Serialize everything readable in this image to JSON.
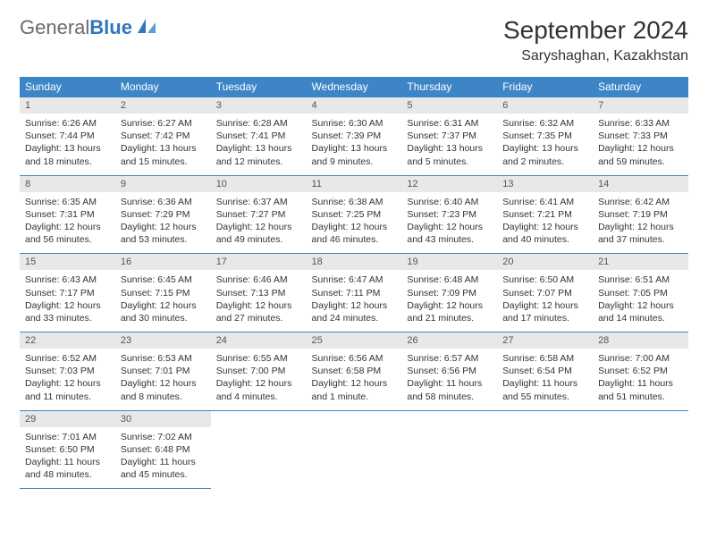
{
  "logo": {
    "part1": "General",
    "part2": "Blue"
  },
  "title": "September 2024",
  "location": "Saryshaghan, Kazakhstan",
  "colors": {
    "header_bg": "#3d85c6",
    "header_text": "#ffffff",
    "daynum_bg": "#e8e8e8",
    "border": "#3d85c6",
    "text": "#333333",
    "logo_gray": "#6a6a6a",
    "logo_blue": "#2f77bb"
  },
  "days_of_week": [
    "Sunday",
    "Monday",
    "Tuesday",
    "Wednesday",
    "Thursday",
    "Friday",
    "Saturday"
  ],
  "weeks": [
    [
      {
        "n": "1",
        "sr": "6:26 AM",
        "ss": "7:44 PM",
        "dl": "13 hours and 18 minutes."
      },
      {
        "n": "2",
        "sr": "6:27 AM",
        "ss": "7:42 PM",
        "dl": "13 hours and 15 minutes."
      },
      {
        "n": "3",
        "sr": "6:28 AM",
        "ss": "7:41 PM",
        "dl": "13 hours and 12 minutes."
      },
      {
        "n": "4",
        "sr": "6:30 AM",
        "ss": "7:39 PM",
        "dl": "13 hours and 9 minutes."
      },
      {
        "n": "5",
        "sr": "6:31 AM",
        "ss": "7:37 PM",
        "dl": "13 hours and 5 minutes."
      },
      {
        "n": "6",
        "sr": "6:32 AM",
        "ss": "7:35 PM",
        "dl": "13 hours and 2 minutes."
      },
      {
        "n": "7",
        "sr": "6:33 AM",
        "ss": "7:33 PM",
        "dl": "12 hours and 59 minutes."
      }
    ],
    [
      {
        "n": "8",
        "sr": "6:35 AM",
        "ss": "7:31 PM",
        "dl": "12 hours and 56 minutes."
      },
      {
        "n": "9",
        "sr": "6:36 AM",
        "ss": "7:29 PM",
        "dl": "12 hours and 53 minutes."
      },
      {
        "n": "10",
        "sr": "6:37 AM",
        "ss": "7:27 PM",
        "dl": "12 hours and 49 minutes."
      },
      {
        "n": "11",
        "sr": "6:38 AM",
        "ss": "7:25 PM",
        "dl": "12 hours and 46 minutes."
      },
      {
        "n": "12",
        "sr": "6:40 AM",
        "ss": "7:23 PM",
        "dl": "12 hours and 43 minutes."
      },
      {
        "n": "13",
        "sr": "6:41 AM",
        "ss": "7:21 PM",
        "dl": "12 hours and 40 minutes."
      },
      {
        "n": "14",
        "sr": "6:42 AM",
        "ss": "7:19 PM",
        "dl": "12 hours and 37 minutes."
      }
    ],
    [
      {
        "n": "15",
        "sr": "6:43 AM",
        "ss": "7:17 PM",
        "dl": "12 hours and 33 minutes."
      },
      {
        "n": "16",
        "sr": "6:45 AM",
        "ss": "7:15 PM",
        "dl": "12 hours and 30 minutes."
      },
      {
        "n": "17",
        "sr": "6:46 AM",
        "ss": "7:13 PM",
        "dl": "12 hours and 27 minutes."
      },
      {
        "n": "18",
        "sr": "6:47 AM",
        "ss": "7:11 PM",
        "dl": "12 hours and 24 minutes."
      },
      {
        "n": "19",
        "sr": "6:48 AM",
        "ss": "7:09 PM",
        "dl": "12 hours and 21 minutes."
      },
      {
        "n": "20",
        "sr": "6:50 AM",
        "ss": "7:07 PM",
        "dl": "12 hours and 17 minutes."
      },
      {
        "n": "21",
        "sr": "6:51 AM",
        "ss": "7:05 PM",
        "dl": "12 hours and 14 minutes."
      }
    ],
    [
      {
        "n": "22",
        "sr": "6:52 AM",
        "ss": "7:03 PM",
        "dl": "12 hours and 11 minutes."
      },
      {
        "n": "23",
        "sr": "6:53 AM",
        "ss": "7:01 PM",
        "dl": "12 hours and 8 minutes."
      },
      {
        "n": "24",
        "sr": "6:55 AM",
        "ss": "7:00 PM",
        "dl": "12 hours and 4 minutes."
      },
      {
        "n": "25",
        "sr": "6:56 AM",
        "ss": "6:58 PM",
        "dl": "12 hours and 1 minute."
      },
      {
        "n": "26",
        "sr": "6:57 AM",
        "ss": "6:56 PM",
        "dl": "11 hours and 58 minutes."
      },
      {
        "n": "27",
        "sr": "6:58 AM",
        "ss": "6:54 PM",
        "dl": "11 hours and 55 minutes."
      },
      {
        "n": "28",
        "sr": "7:00 AM",
        "ss": "6:52 PM",
        "dl": "11 hours and 51 minutes."
      }
    ],
    [
      {
        "n": "29",
        "sr": "7:01 AM",
        "ss": "6:50 PM",
        "dl": "11 hours and 48 minutes."
      },
      {
        "n": "30",
        "sr": "7:02 AM",
        "ss": "6:48 PM",
        "dl": "11 hours and 45 minutes."
      },
      null,
      null,
      null,
      null,
      null
    ]
  ],
  "labels": {
    "sunrise": "Sunrise:",
    "sunset": "Sunset:",
    "daylight": "Daylight:"
  }
}
